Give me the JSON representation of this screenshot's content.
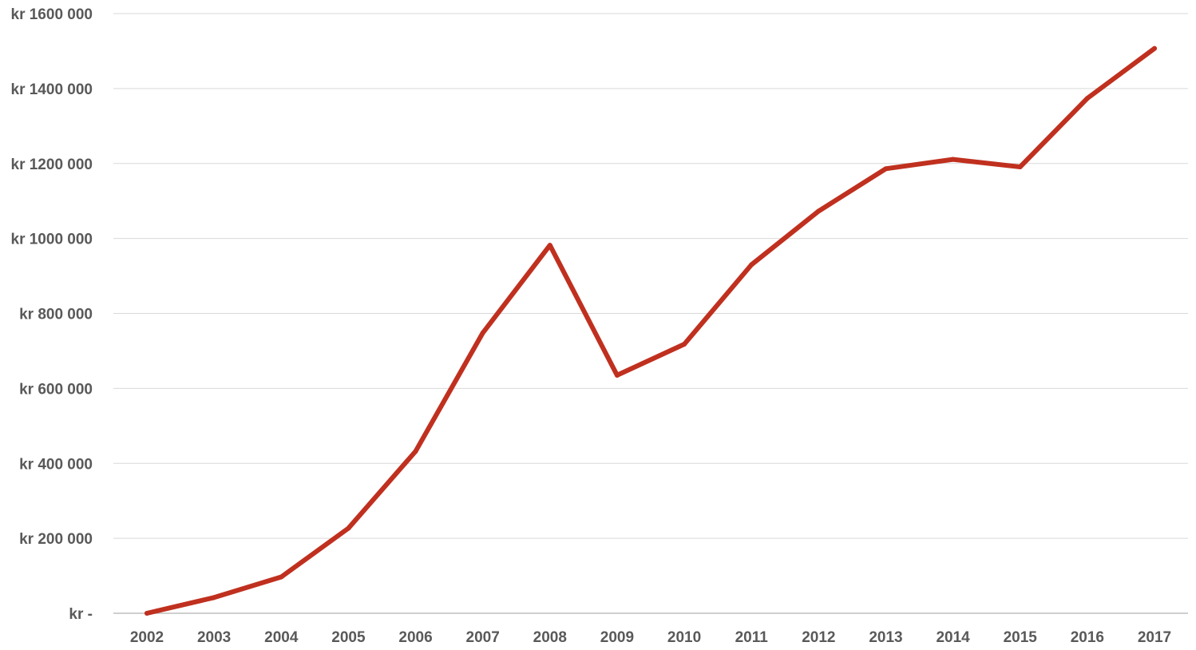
{
  "chart_data": {
    "type": "line",
    "title": "",
    "xlabel": "",
    "ylabel": "",
    "categories": [
      "2002",
      "2003",
      "2004",
      "2005",
      "2006",
      "2007",
      "2008",
      "2009",
      "2010",
      "2011",
      "2012",
      "2013",
      "2014",
      "2015",
      "2016",
      "2017"
    ],
    "series": [
      {
        "values": [
          0,
          42000,
          97000,
          227000,
          432000,
          748000,
          982000,
          635000,
          718000,
          930000,
          1073000,
          1186000,
          1211000,
          1191000,
          1374000,
          1507000
        ]
      }
    ],
    "ylim": [
      0,
      1600000
    ],
    "yticks": [
      0,
      200000,
      400000,
      600000,
      800000,
      1000000,
      1200000,
      1400000,
      1600000
    ],
    "ytick_labels": [
      "kr -",
      "kr 200 000",
      "kr 400 000",
      "kr 600 000",
      "kr 800 000",
      "kr 1000 000",
      "kr 1200 000",
      "kr 1400 000",
      "kr 1600 000"
    ],
    "grid": true,
    "legend": "none",
    "colors": {
      "line": "#c0301f",
      "grid": "#d9d9d9",
      "axis": "#bfbfbf",
      "tick_label": "#595959"
    }
  }
}
